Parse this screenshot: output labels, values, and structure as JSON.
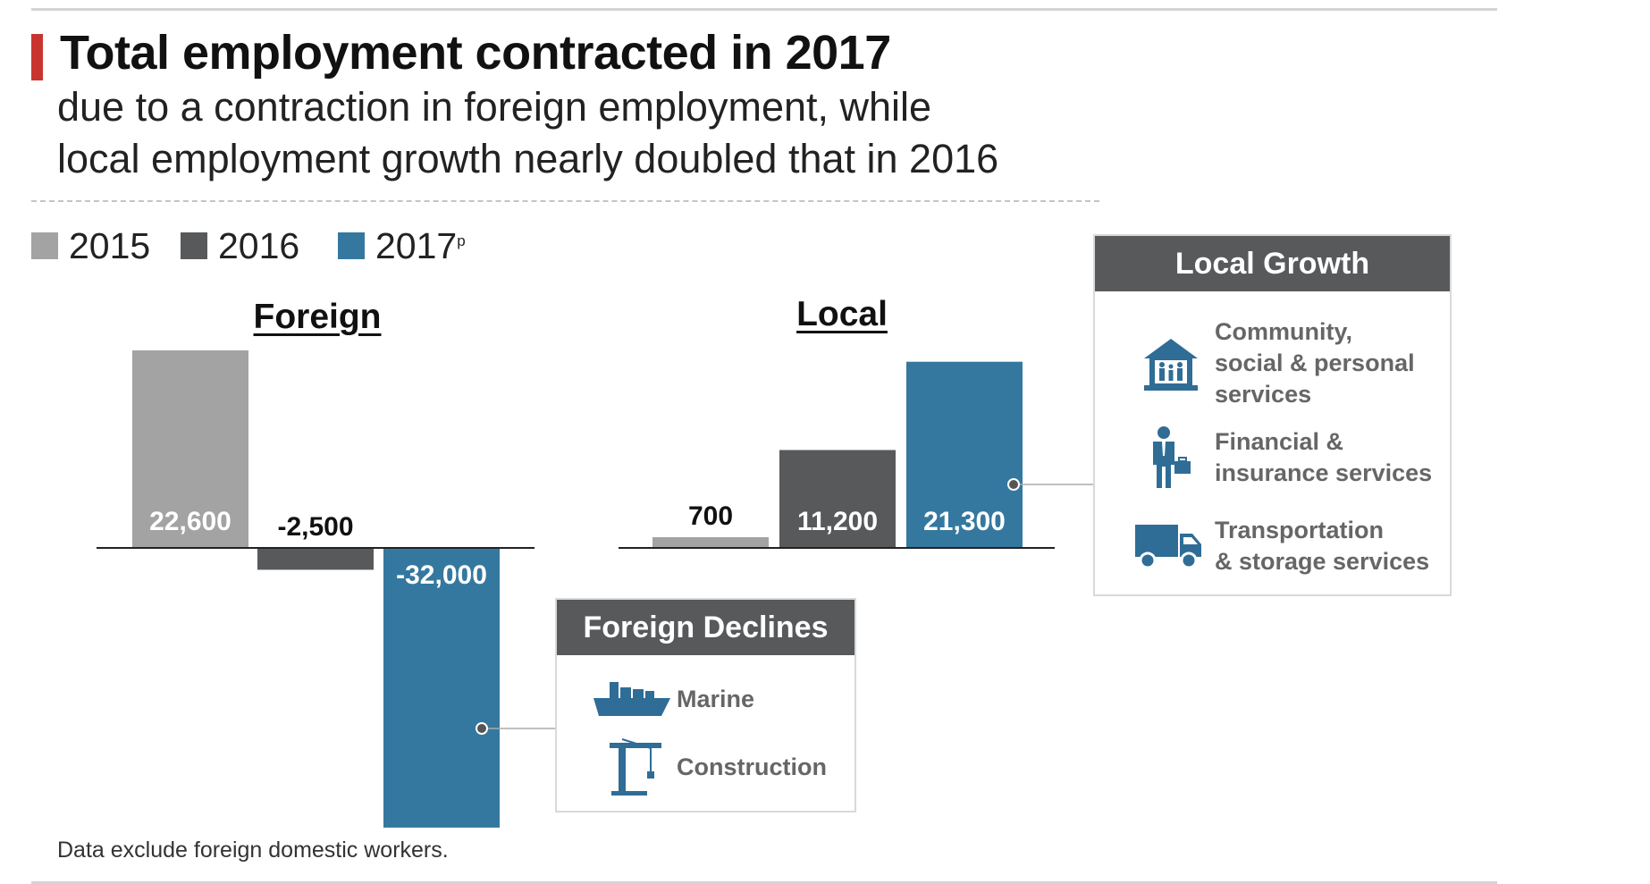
{
  "header": {
    "title": "Total employment contracted in 2017",
    "subtitle_line1": "due to a contraction in foreign employment, while",
    "subtitle_line2": "local employment growth nearly doubled that in 2016"
  },
  "colors": {
    "accent": "#c8352f",
    "y2015": "#a3a3a3",
    "y2016": "#58595b",
    "y2017": "#35789f",
    "icon": "#2f6d96"
  },
  "legend": [
    {
      "label": "2015",
      "color": "#a3a3a3"
    },
    {
      "label": "2016",
      "color": "#58595b"
    },
    {
      "label": "2017",
      "sup": "p",
      "color": "#35789f"
    }
  ],
  "chart_data": {
    "type": "bar",
    "series_names": [
      "2015",
      "2016",
      "2017p"
    ],
    "panels": [
      {
        "title": "Foreign",
        "values": [
          22600,
          -2500,
          -32000
        ],
        "labels": [
          "22,600",
          "-2,500",
          "-32,000"
        ]
      },
      {
        "title": "Local",
        "values": [
          700,
          11200,
          21300
        ],
        "labels": [
          "700",
          "11,200",
          "21,300"
        ]
      }
    ]
  },
  "local_growth": {
    "title": "Local Growth",
    "items": [
      {
        "icon": "community-building-icon",
        "text": "Community,\nsocial & personal\nservices"
      },
      {
        "icon": "businessman-icon",
        "text": "Financial &\ninsurance services"
      },
      {
        "icon": "truck-icon",
        "text": "Transportation\n& storage services"
      }
    ]
  },
  "foreign_declines": {
    "title": "Foreign Declines",
    "items": [
      {
        "icon": "cargo-ship-icon",
        "text": "Marine"
      },
      {
        "icon": "crane-icon",
        "text": "Construction"
      }
    ]
  },
  "footnote": "Data exclude foreign domestic workers."
}
